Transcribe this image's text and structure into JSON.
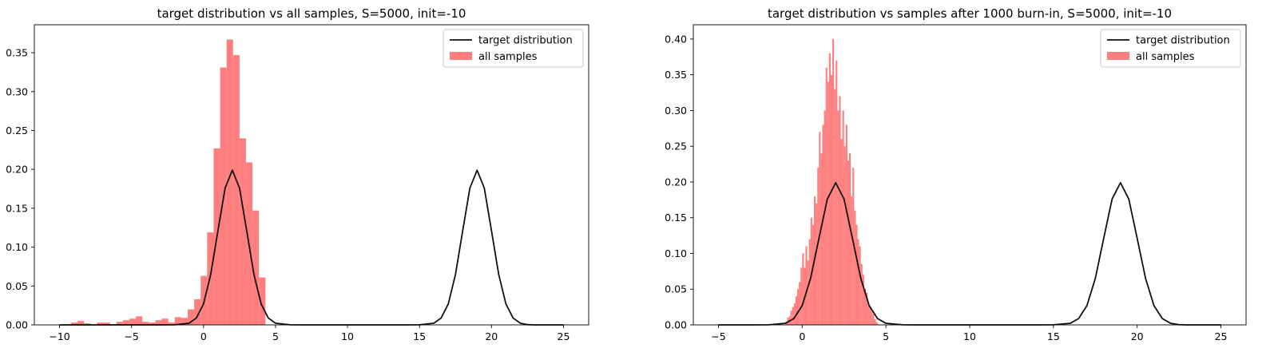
{
  "chart_data": [
    {
      "type": "histogram",
      "title": "target distribution vs all samples, S=5000, init=-10",
      "xlim": [
        -11.75,
        26.75
      ],
      "ylim": [
        0,
        0.386
      ],
      "xticks": [
        -10,
        -5,
        0,
        5,
        10,
        15,
        20,
        25
      ],
      "xtick_labels": [
        "−10",
        "−5",
        "0",
        "5",
        "10",
        "15",
        "20",
        "25"
      ],
      "yticks": [
        0.0,
        0.05,
        0.1,
        0.15,
        0.2,
        0.25,
        0.3,
        0.35
      ],
      "ytick_labels": [
        "0.00",
        "0.05",
        "0.10",
        "0.15",
        "0.20",
        "0.25",
        "0.30",
        "0.35"
      ],
      "legend": {
        "position": "top-right",
        "entries": [
          "target distribution",
          "all samples"
        ]
      },
      "series": [
        {
          "name": "all samples",
          "kind": "hist",
          "color": "#ff7f7f",
          "bin_edges": [
            -9.2,
            -8.75,
            -8.3,
            -7.85,
            -7.4,
            -6.95,
            -6.5,
            -6.05,
            -5.6,
            -5.15,
            -4.7,
            -4.25,
            -3.8,
            -3.35,
            -2.9,
            -2.45,
            -2.0,
            -1.55,
            -1.1,
            -0.65,
            -0.2,
            0.25,
            0.7,
            1.15,
            1.6,
            2.05,
            2.5,
            2.95,
            3.4,
            3.85,
            4.3
          ],
          "values": [
            0.003,
            0.005,
            0.002,
            0.0,
            0.003,
            0.003,
            0.0,
            0.004,
            0.006,
            0.008,
            0.011,
            0.004,
            0.003,
            0.006,
            0.008,
            0.003,
            0.01,
            0.009,
            0.02,
            0.033,
            0.063,
            0.119,
            0.227,
            0.331,
            0.367,
            0.347,
            0.24,
            0.209,
            0.147,
            0.061
          ]
        },
        {
          "name": "target distribution",
          "kind": "line",
          "color": "#111111",
          "x": [
            -10,
            -9,
            -8,
            -7,
            -6,
            -5,
            -4,
            -3,
            -2,
            -1,
            -0.5,
            0,
            0.5,
            1,
            1.5,
            2,
            2.5,
            3,
            3.5,
            4,
            4.5,
            5,
            6,
            7,
            8,
            9,
            10,
            11,
            12,
            13,
            14,
            15,
            16,
            16.5,
            17,
            17.5,
            18,
            18.5,
            19,
            19.5,
            20,
            20.5,
            21,
            21.5,
            22,
            22.5,
            23,
            23.5,
            24,
            25
          ],
          "y": [
            0,
            0,
            0,
            0,
            0,
            0,
            0,
            0,
            0.0001,
            0.0022,
            0.0088,
            0.027,
            0.065,
            0.121,
            0.176,
            0.199,
            0.176,
            0.121,
            0.065,
            0.027,
            0.0088,
            0.0022,
            0.0001,
            0,
            0,
            0,
            0,
            0,
            0,
            0,
            0,
            0.0001,
            0.0022,
            0.0088,
            0.027,
            0.065,
            0.121,
            0.176,
            0.199,
            0.176,
            0.121,
            0.065,
            0.027,
            0.0088,
            0.0022,
            0.0003,
            0,
            0,
            0,
            0
          ]
        }
      ]
    },
    {
      "type": "histogram",
      "title": "target distribution vs samples after 1000 burn-in, S=5000, init=-10",
      "xlim": [
        -6.5,
        26.5
      ],
      "ylim": [
        0,
        0.42
      ],
      "xticks": [
        -5,
        0,
        5,
        10,
        15,
        20,
        25
      ],
      "xtick_labels": [
        "−5",
        "0",
        "5",
        "10",
        "15",
        "20",
        "25"
      ],
      "yticks": [
        0.0,
        0.05,
        0.1,
        0.15,
        0.2,
        0.25,
        0.3,
        0.35,
        0.4
      ],
      "ytick_labels": [
        "0.00",
        "0.05",
        "0.10",
        "0.15",
        "0.20",
        "0.25",
        "0.30",
        "0.35",
        "0.40"
      ],
      "legend": {
        "position": "top-right",
        "entries": [
          "target distribution",
          "all samples"
        ]
      },
      "series": [
        {
          "name": "all samples",
          "kind": "hist",
          "color": "#ff7f7f",
          "bin_edges": [
            -1.0,
            -0.9,
            -0.8,
            -0.7,
            -0.6,
            -0.5,
            -0.4,
            -0.3,
            -0.2,
            -0.1,
            0.0,
            0.1,
            0.2,
            0.3,
            0.4,
            0.5,
            0.6,
            0.7,
            0.8,
            0.9,
            1.0,
            1.1,
            1.2,
            1.3,
            1.4,
            1.5,
            1.6,
            1.7,
            1.8,
            1.9,
            2.0,
            2.1,
            2.2,
            2.3,
            2.4,
            2.5,
            2.6,
            2.7,
            2.8,
            2.9,
            3.0,
            3.1,
            3.2,
            3.3,
            3.4,
            3.5,
            3.6,
            3.7,
            3.8,
            3.9,
            4.0,
            4.1,
            4.2,
            4.3,
            4.4,
            4.5
          ],
          "values": [
            0.005,
            0.01,
            0.012,
            0.02,
            0.025,
            0.03,
            0.04,
            0.05,
            0.06,
            0.08,
            0.1,
            0.08,
            0.11,
            0.09,
            0.12,
            0.15,
            0.14,
            0.18,
            0.17,
            0.22,
            0.27,
            0.24,
            0.28,
            0.3,
            0.36,
            0.34,
            0.38,
            0.35,
            0.4,
            0.33,
            0.37,
            0.3,
            0.32,
            0.26,
            0.3,
            0.25,
            0.28,
            0.23,
            0.24,
            0.18,
            0.22,
            0.16,
            0.14,
            0.12,
            0.11,
            0.085,
            0.07,
            0.05,
            0.045,
            0.03,
            0.025,
            0.02,
            0.015,
            0.008,
            0.004
          ]
        },
        {
          "name": "target distribution",
          "kind": "line",
          "color": "#111111",
          "x": [
            -5,
            -4,
            -3,
            -2,
            -1,
            -0.5,
            0,
            0.5,
            1,
            1.5,
            2,
            2.5,
            3,
            3.5,
            4,
            4.5,
            5,
            6,
            7,
            8,
            9,
            10,
            11,
            12,
            13,
            14,
            15,
            16,
            16.5,
            17,
            17.5,
            18,
            18.5,
            19,
            19.5,
            20,
            20.5,
            21,
            21.5,
            22,
            22.5,
            23,
            23.5,
            24,
            25
          ],
          "y": [
            0,
            0,
            0,
            0.0001,
            0.0022,
            0.0088,
            0.027,
            0.065,
            0.121,
            0.176,
            0.199,
            0.176,
            0.121,
            0.065,
            0.027,
            0.0088,
            0.0022,
            0.0001,
            0,
            0,
            0,
            0,
            0,
            0,
            0,
            0,
            0.0001,
            0.0022,
            0.0088,
            0.027,
            0.065,
            0.121,
            0.176,
            0.199,
            0.176,
            0.121,
            0.065,
            0.027,
            0.0088,
            0.0022,
            0.0003,
            0,
            0,
            0,
            0
          ]
        }
      ]
    }
  ]
}
